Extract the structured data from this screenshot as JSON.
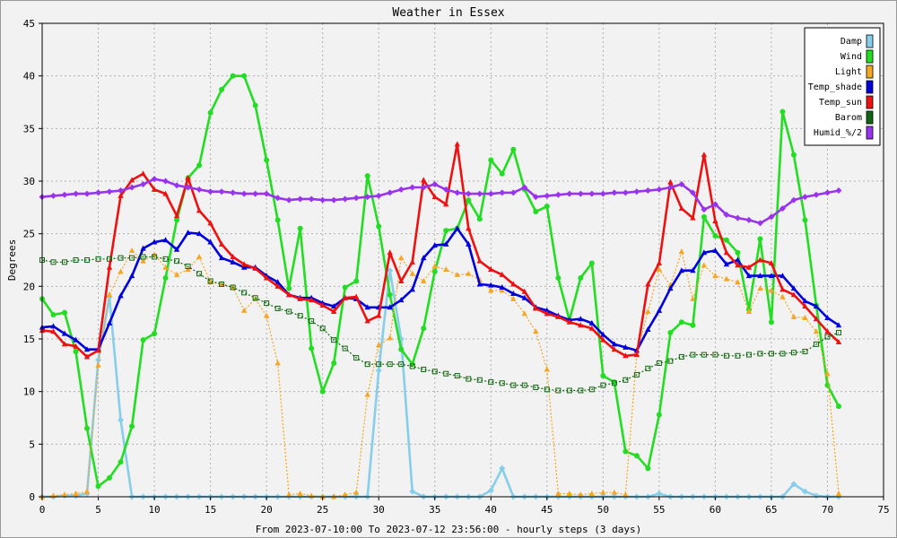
{
  "chart_data": {
    "type": "line",
    "title": "Weather in Essex",
    "xlabel": "From 2023-07-10:00 To 2023-07-12 23:56:00 - hourly steps (3 days)",
    "ylabel": "Degrees",
    "xlim": [
      0,
      75
    ],
    "ylim": [
      0,
      45
    ],
    "xticks": [
      0,
      5,
      10,
      15,
      20,
      25,
      30,
      35,
      40,
      45,
      50,
      55,
      60,
      65,
      70,
      75
    ],
    "yticks": [
      0,
      5,
      10,
      15,
      20,
      25,
      30,
      35,
      40,
      45
    ],
    "grid": true,
    "legend_position": "top-right",
    "series": [
      {
        "name": "Damp",
        "color": "#87ceeb",
        "marker": "diamond",
        "dash": "",
        "values": [
          0,
          0,
          0.1,
          0.1,
          0.3,
          13,
          19,
          7.3,
          0,
          0,
          0,
          0,
          0,
          0,
          0,
          0,
          0,
          0,
          0,
          0,
          0,
          0,
          0,
          0,
          0,
          0,
          0,
          0,
          0,
          0,
          12,
          21.5,
          15,
          0.5,
          0,
          0,
          0,
          0,
          0,
          0,
          0.6,
          2.7,
          0,
          0,
          0,
          0,
          0,
          0,
          0,
          0,
          0,
          0,
          0,
          0,
          0,
          0.3,
          0,
          0,
          0,
          0,
          0,
          0,
          0,
          0,
          0,
          0,
          0,
          1.2,
          0.5,
          0.1,
          0,
          0
        ]
      },
      {
        "name": "Wind",
        "color": "#22dd22",
        "marker": "circle",
        "dash": "",
        "values": [
          18.8,
          17.3,
          17.5,
          13.8,
          6.5,
          1,
          1.8,
          3.3,
          6.7,
          14.9,
          15.5,
          20.8,
          26.3,
          30.3,
          31.5,
          36.5,
          38.7,
          40,
          40,
          37.2,
          32,
          26.3,
          19.8,
          25.5,
          14.1,
          10,
          12.7,
          19.9,
          20.5,
          30.5,
          25.7,
          19.2,
          14,
          12.6,
          16,
          21.4,
          25.3,
          25.5,
          28.2,
          26.4,
          32,
          30.7,
          33,
          29.2,
          27.1,
          27.6,
          20.8,
          16.8,
          20.8,
          22.2,
          11.5,
          10.9,
          4.3,
          3.9,
          2.7,
          7.8,
          15.6,
          16.6,
          16.3,
          26.6,
          24.8,
          24.4,
          23.2,
          17.8,
          24.5,
          16.6,
          36.6,
          32.5,
          26.3,
          18.2,
          10.6,
          8.6
        ]
      },
      {
        "name": "Light",
        "color": "#f5a623",
        "marker": "triangle",
        "dash": "2,2",
        "values": [
          0,
          0.1,
          0.2,
          0.3,
          0.5,
          12.5,
          19.2,
          21.4,
          23.4,
          22.4,
          23,
          21.8,
          21.1,
          21.6,
          22.8,
          20.4,
          20.2,
          19.9,
          17.7,
          18.8,
          17.2,
          12.7,
          0.2,
          0.3,
          0.1,
          0,
          0,
          0.2,
          0.4,
          9.7,
          14.4,
          15.1,
          22.7,
          21.2,
          20.5,
          21.9,
          21.6,
          21.1,
          21.2,
          20.6,
          19.6,
          19.6,
          18.8,
          17.4,
          15.7,
          12.1,
          0.3,
          0.3,
          0.2,
          0.3,
          0.4,
          0.4,
          0.2,
          13.6,
          17.6,
          21.6,
          20.1,
          23.3,
          18.8,
          22,
          21,
          20.7,
          20.4,
          17.6,
          19.8,
          19.6,
          19,
          17.1,
          17,
          15.7,
          11.7,
          0.3
        ]
      },
      {
        "name": "Temp_shade",
        "color": "#0000dd",
        "marker": "triangle",
        "dash": "",
        "values": [
          16.1,
          16.2,
          15.5,
          14.9,
          14,
          14,
          16.5,
          19.1,
          21,
          23.6,
          24.2,
          24.4,
          23.5,
          25.1,
          25,
          24.2,
          22.7,
          22.3,
          21.8,
          21.8,
          21,
          20.4,
          19.2,
          18.9,
          18.9,
          18.4,
          18.1,
          18.9,
          18.8,
          18,
          18,
          18,
          18.7,
          19.7,
          22.7,
          23.9,
          24,
          25.5,
          24,
          20.2,
          20.1,
          19.9,
          19.3,
          18.9,
          18,
          17.7,
          17.2,
          16.8,
          16.9,
          16.5,
          15.4,
          14.5,
          14.2,
          13.9,
          15.9,
          17.7,
          19.8,
          21.5,
          21.5,
          23.2,
          23.4,
          22.1,
          22.5,
          21,
          21,
          21,
          21,
          19.8,
          18.6,
          18.1,
          17,
          16.3
        ]
      },
      {
        "name": "Temp_sun",
        "color": "#ee1111",
        "marker": "triangle",
        "dash": "",
        "values": [
          15.8,
          15.7,
          14.5,
          14.3,
          13.3,
          13.9,
          21.8,
          28.6,
          30.1,
          30.7,
          29.2,
          28.8,
          26.7,
          30.3,
          27.2,
          26,
          24,
          22.8,
          22.1,
          21.7,
          20.8,
          20,
          19.2,
          18.8,
          18.7,
          18.2,
          17.6,
          18.9,
          19,
          16.7,
          17.2,
          23.2,
          20.5,
          22.3,
          30.1,
          28.5,
          27.8,
          33.5,
          25.5,
          22.4,
          21.6,
          21.1,
          20.2,
          19.5,
          17.9,
          17.4,
          17.1,
          16.6,
          16.3,
          16,
          14.9,
          14,
          13.4,
          13.5,
          20.2,
          22.2,
          29.9,
          27.4,
          26.5,
          32.5,
          26.2,
          23.2,
          22,
          21.8,
          22.5,
          22.2,
          19.7,
          19.2,
          18.1,
          16.9,
          15.7,
          14.7
        ]
      },
      {
        "name": "Barom",
        "color": "#116611",
        "marker": "square",
        "dash": "2,2",
        "values": [
          22.5,
          22.3,
          22.3,
          22.5,
          22.5,
          22.6,
          22.6,
          22.7,
          22.7,
          22.8,
          22.8,
          22.6,
          22.4,
          21.9,
          21.2,
          20.5,
          20.2,
          19.9,
          19.4,
          18.9,
          18.4,
          17.9,
          17.6,
          17.2,
          16.7,
          16,
          14.9,
          14.1,
          13.2,
          12.6,
          12.6,
          12.6,
          12.6,
          12.4,
          12.1,
          11.9,
          11.7,
          11.5,
          11.2,
          11.1,
          10.9,
          10.8,
          10.6,
          10.6,
          10.4,
          10.2,
          10.1,
          10.1,
          10.1,
          10.2,
          10.6,
          10.8,
          11.1,
          11.6,
          12.2,
          12.7,
          12.9,
          13.3,
          13.5,
          13.5,
          13.5,
          13.4,
          13.4,
          13.5,
          13.6,
          13.6,
          13.6,
          13.7,
          13.8,
          14.5,
          15.2,
          15.6
        ]
      },
      {
        "name": "Humid_%/2",
        "color": "#9933ee",
        "marker": "diamond",
        "dash": "",
        "values": [
          28.5,
          28.6,
          28.7,
          28.8,
          28.8,
          28.9,
          29,
          29.1,
          29.4,
          29.7,
          30.2,
          30,
          29.6,
          29.4,
          29.2,
          29,
          29,
          28.9,
          28.8,
          28.8,
          28.8,
          28.4,
          28.2,
          28.3,
          28.3,
          28.2,
          28.2,
          28.3,
          28.4,
          28.5,
          28.6,
          28.9,
          29.2,
          29.4,
          29.4,
          29.7,
          29.2,
          28.9,
          28.8,
          28.8,
          28.8,
          28.9,
          28.9,
          29.4,
          28.5,
          28.6,
          28.7,
          28.8,
          28.8,
          28.8,
          28.8,
          28.9,
          28.9,
          29,
          29.1,
          29.2,
          29.4,
          29.7,
          28.9,
          27.3,
          27.8,
          26.8,
          26.5,
          26.3,
          26,
          26.6,
          27.4,
          28.2,
          28.5,
          28.7,
          28.9,
          29.1
        ]
      }
    ]
  }
}
